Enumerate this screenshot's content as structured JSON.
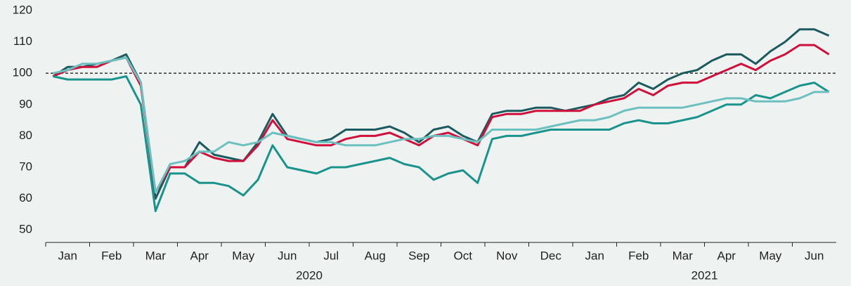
{
  "chart_data": {
    "type": "line",
    "categories": [
      null,
      "Jan",
      null,
      null,
      "Feb",
      null,
      null,
      "Mar",
      null,
      null,
      "Apr",
      null,
      null,
      "May",
      null,
      null,
      "Jun",
      null,
      null,
      "Jul",
      null,
      null,
      "Aug",
      null,
      null,
      "Sep",
      null,
      null,
      "Oct",
      null,
      null,
      "Nov",
      null,
      null,
      "Dec",
      null,
      null,
      "Jan",
      null,
      null,
      "Feb",
      null,
      null,
      "Mar",
      null,
      null,
      "Apr",
      null,
      null,
      "May",
      null,
      null,
      "Jun",
      null
    ],
    "year_labels": [
      "2020",
      "2021"
    ],
    "series": [
      {
        "color": "#1b5a5f",
        "values": [
          99,
          102,
          102,
          103,
          104,
          106,
          97,
          60,
          70,
          70,
          78,
          74,
          73,
          72,
          78,
          87,
          80,
          79,
          78,
          79,
          82,
          82,
          82,
          83,
          81,
          78,
          82,
          83,
          80,
          78,
          87,
          88,
          88,
          89,
          89,
          88,
          89,
          90,
          92,
          93,
          97,
          95,
          98,
          100,
          101,
          104,
          106,
          106,
          103,
          107,
          110,
          114,
          114,
          112
        ]
      },
      {
        "color": "#d0103a",
        "values": [
          99,
          101,
          102,
          102,
          104,
          105,
          96,
          62,
          70,
          70,
          75,
          73,
          72,
          72,
          77,
          85,
          79,
          78,
          77,
          77,
          79,
          80,
          80,
          81,
          79,
          77,
          80,
          81,
          79,
          77,
          86,
          87,
          87,
          88,
          88,
          88,
          88,
          90,
          91,
          92,
          95,
          93,
          96,
          97,
          97,
          99,
          101,
          103,
          101,
          104,
          106,
          109,
          109,
          106
        ]
      },
      {
        "color": "#1a938c",
        "values": [
          99,
          98,
          98,
          98,
          98,
          99,
          90,
          56,
          68,
          68,
          65,
          65,
          64,
          61,
          66,
          77,
          70,
          69,
          68,
          70,
          70,
          71,
          72,
          73,
          71,
          70,
          66,
          68,
          69,
          65,
          79,
          80,
          80,
          81,
          82,
          82,
          82,
          82,
          82,
          84,
          85,
          84,
          84,
          85,
          86,
          88,
          90,
          90,
          93,
          92,
          94,
          96,
          97,
          94
        ]
      },
      {
        "color": "#6dc0c0",
        "values": [
          100,
          101,
          103,
          103,
          104,
          105,
          97,
          62,
          71,
          72,
          75,
          75,
          78,
          77,
          78,
          81,
          80,
          79,
          78,
          78,
          77,
          77,
          77,
          78,
          79,
          79,
          80,
          80,
          79,
          78,
          82,
          82,
          82,
          82,
          83,
          84,
          85,
          85,
          86,
          88,
          89,
          89,
          89,
          89,
          90,
          91,
          92,
          92,
          91,
          91,
          91,
          92,
          94,
          94
        ]
      }
    ],
    "ylim": [
      46,
      120
    ],
    "yticks": [
      50,
      60,
      70,
      80,
      90,
      100,
      110,
      120
    ],
    "reference_line": 100,
    "grid": false
  }
}
